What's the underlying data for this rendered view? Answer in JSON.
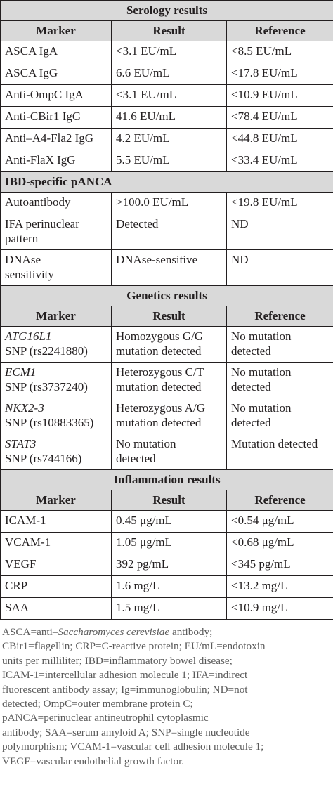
{
  "serology": {
    "title": "Serology results",
    "headers": [
      "Marker",
      "Result",
      "Reference"
    ],
    "rows": [
      {
        "marker": "ASCA IgA",
        "result": "<3.1 EU/mL",
        "reference": "<8.5 EU/mL"
      },
      {
        "marker": "ASCA IgG",
        "result": "6.6 EU/mL",
        "reference": "<17.8 EU/mL"
      },
      {
        "marker": "Anti-OmpC IgA",
        "result": "<3.1 EU/mL",
        "reference": "<10.9 EU/mL"
      },
      {
        "marker": "Anti-CBir1 IgG",
        "result": "41.6 EU/mL",
        "reference": "<78.4 EU/mL"
      },
      {
        "marker": "Anti–A4-Fla2 IgG",
        "result": "4.2 EU/mL",
        "reference": "<44.8 EU/mL"
      },
      {
        "marker": "Anti-FlaX IgG",
        "result": "5.5 EU/mL",
        "reference": "<33.4 EU/mL"
      }
    ]
  },
  "panca": {
    "title": "IBD-specific pANCA",
    "rows": [
      {
        "marker": "Autoantibody",
        "result": ">100.0 EU/mL",
        "reference": "<19.8 EU/mL"
      },
      {
        "marker_line1": "IFA perinuclear",
        "marker_line2": "pattern",
        "result": "Detected",
        "reference": "ND"
      },
      {
        "marker_line1": "DNAse",
        "marker_line2": "sensitivity",
        "result": "DNAse-sensitive",
        "reference": "ND"
      }
    ]
  },
  "genetics": {
    "title": "Genetics results",
    "headers": [
      "Marker",
      "Result",
      "Reference"
    ],
    "rows": [
      {
        "gene": "ATG16L1",
        "snp": "SNP (rs2241880)",
        "result_line1": "Homozygous G/G",
        "result_line2": "mutation detected",
        "reference_line1": "No mutation",
        "reference_line2": "detected"
      },
      {
        "gene": "ECM1",
        "snp": "SNP (rs3737240)",
        "result_line1": "Heterozygous C/T",
        "result_line2": "mutation detected",
        "reference_line1": "No mutation",
        "reference_line2": "detected"
      },
      {
        "gene": "NKX2-3",
        "snp": "SNP (rs10883365)",
        "result_line1": "Heterozygous A/G",
        "result_line2": "mutation detected",
        "reference_line1": "No mutation",
        "reference_line2": "detected"
      },
      {
        "gene": "STAT3",
        "snp": "SNP (rs744166)",
        "result_line1": "No mutation",
        "result_line2": "detected",
        "reference_line1": "Mutation detected",
        "reference_line2": ""
      }
    ]
  },
  "inflammation": {
    "title": "Inflammation results",
    "headers": [
      "Marker",
      "Result",
      "Reference"
    ],
    "rows": [
      {
        "marker": "ICAM-1",
        "result": "0.45 μg/mL",
        "reference": "<0.54 μg/mL"
      },
      {
        "marker": "VCAM-1",
        "result": "1.05 μg/mL",
        "reference": "<0.68 μg/mL"
      },
      {
        "marker": "VEGF",
        "result": "392 pg/mL",
        "reference": "<345 pg/mL"
      },
      {
        "marker": "CRP",
        "result": "1.6 mg/L",
        "reference": "<13.2 mg/L"
      },
      {
        "marker": "SAA",
        "result": "1.5 mg/L",
        "reference": "<10.9 mg/L"
      }
    ]
  },
  "footnote": {
    "line1_prefix": "ASCA=anti–",
    "line1_italic": "Saccharomyces cerevisiae",
    "line1_suffix": " antibody;",
    "line2": "CBir1=flagellin; CRP=C-reactive protein; EU/mL=endotoxin",
    "line3": "units per milliliter; IBD=inflammatory bowel disease;",
    "line4": "ICAM-1=intercellular adhesion molecule 1; IFA=indirect",
    "line5": "fluorescent antibody assay; Ig=immunoglobulin; ND=not",
    "line6": "detected; OmpC=outer membrane protein C;",
    "line7": "pANCA=perinuclear antineutrophil cytoplasmic",
    "line8": "antibody; SAA=serum amyloid A; SNP=single nucleotide",
    "line9": "polymorphism; VCAM-1=vascular cell adhesion molecule 1;",
    "line10": "VEGF=vascular endothelial growth factor."
  }
}
